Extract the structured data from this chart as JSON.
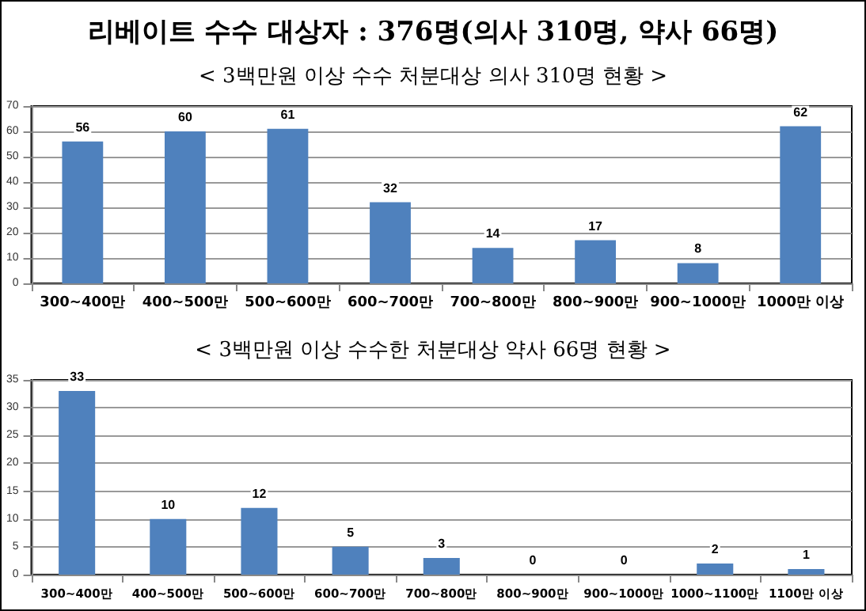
{
  "chart_data": [
    {
      "type": "bar",
      "title": "리베이트 수수 대상자 : 376명(의사 310명, 약사 66명)",
      "subtitle": "< 3백만원 이상 수수 처분대상 의사 310명 현황 >",
      "categories": [
        "300~400만",
        "400~500만",
        "500~600만",
        "600~700만",
        "700~800만",
        "800~900만",
        "900~1000만",
        "1000만 이상"
      ],
      "values": [
        56,
        60,
        61,
        32,
        14,
        17,
        8,
        62
      ],
      "color": "#4f81bd",
      "data_labels": true,
      "ylim": [
        0,
        70
      ],
      "yticks": [
        0,
        10,
        20,
        30,
        40,
        50,
        60,
        70
      ],
      "grid": "y"
    },
    {
      "type": "bar",
      "title": "< 3백만원 이상 수수한 처분대상 약사 66명 현황 >",
      "categories": [
        "300~400만",
        "400~500만",
        "500~600만",
        "600~700만",
        "700~800만",
        "800~900만",
        "900~1000만",
        "1000~1100만",
        "1100만 이상"
      ],
      "values": [
        33,
        10,
        12,
        5,
        3,
        0,
        0,
        2,
        1
      ],
      "color": "#4f81bd",
      "data_labels": true,
      "ylim": [
        0,
        35
      ],
      "yticks": [
        0,
        5,
        10,
        15,
        20,
        25,
        30,
        35
      ],
      "grid": "y"
    }
  ]
}
